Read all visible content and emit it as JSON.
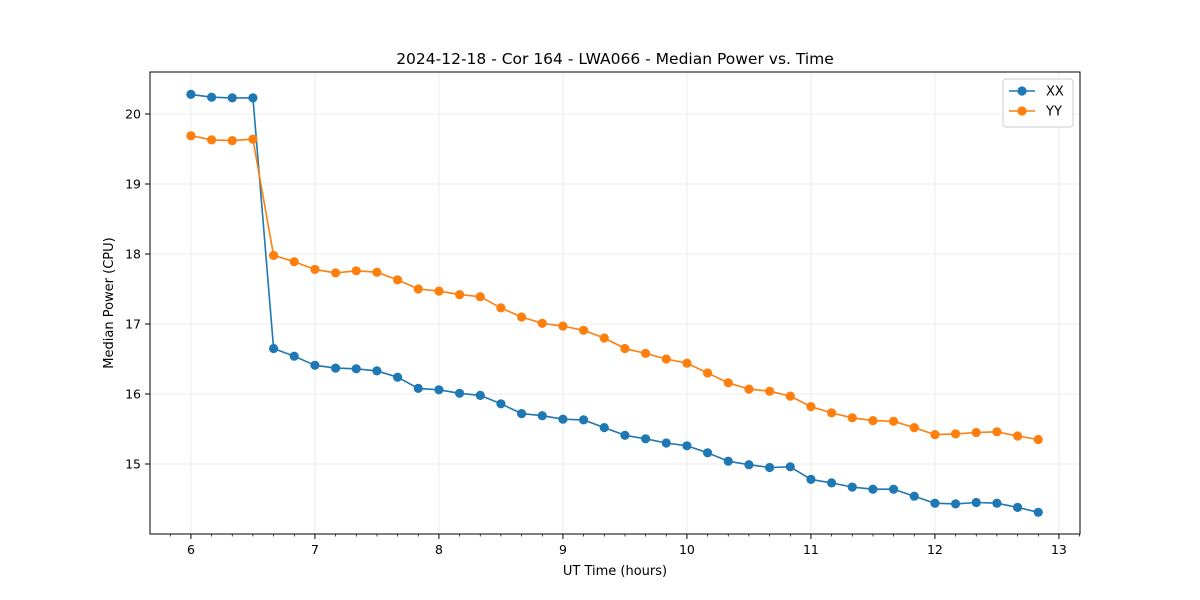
{
  "chart_data": {
    "type": "line",
    "title": "2024-12-18 - Cor 164 - LWA066 - Median Power vs. Time",
    "xlabel": "UT Time (hours)",
    "ylabel": "Median Power (CPU)",
    "xlim": [
      5.67,
      13.17
    ],
    "ylim": [
      14.0,
      20.6
    ],
    "xticks": [
      6,
      7,
      8,
      9,
      10,
      11,
      12,
      13
    ],
    "yticks": [
      15,
      16,
      17,
      18,
      19,
      20
    ],
    "grid": true,
    "legend_position": "upper right",
    "x": [
      6.0,
      6.1667,
      6.3333,
      6.5,
      6.6667,
      6.8333,
      7.0,
      7.1667,
      7.3333,
      7.5,
      7.6667,
      7.8333,
      8.0,
      8.1667,
      8.3333,
      8.5,
      8.6667,
      8.8333,
      9.0,
      9.1667,
      9.3333,
      9.5,
      9.6667,
      9.8333,
      10.0,
      10.1667,
      10.3333,
      10.5,
      10.6667,
      10.8333,
      11.0,
      11.1667,
      11.3333,
      11.5,
      11.6667,
      11.8333,
      12.0,
      12.1667,
      12.3333,
      12.5,
      12.6667,
      12.8333
    ],
    "series": [
      {
        "name": "XX",
        "color": "#1f77b4",
        "values": [
          20.28,
          20.24,
          20.23,
          20.23,
          16.65,
          16.54,
          16.41,
          16.37,
          16.36,
          16.33,
          16.24,
          16.08,
          16.06,
          16.01,
          15.98,
          15.86,
          15.72,
          15.69,
          15.64,
          15.63,
          15.52,
          15.41,
          15.36,
          15.3,
          15.26,
          15.16,
          15.04,
          14.99,
          14.95,
          14.96,
          14.78,
          14.73,
          14.67,
          14.64,
          14.64,
          14.54,
          14.44,
          14.43,
          14.45,
          14.44,
          14.38,
          14.31
        ]
      },
      {
        "name": "YY",
        "color": "#ff7f0e",
        "values": [
          19.69,
          19.63,
          19.62,
          19.64,
          17.98,
          17.89,
          17.78,
          17.73,
          17.76,
          17.74,
          17.63,
          17.5,
          17.47,
          17.42,
          17.39,
          17.23,
          17.1,
          17.01,
          16.97,
          16.91,
          16.8,
          16.65,
          16.58,
          16.5,
          16.44,
          16.3,
          16.16,
          16.07,
          16.04,
          15.97,
          15.82,
          15.73,
          15.66,
          15.62,
          15.61,
          15.52,
          15.42,
          15.43,
          15.45,
          15.46,
          15.4,
          15.35
        ]
      }
    ]
  }
}
